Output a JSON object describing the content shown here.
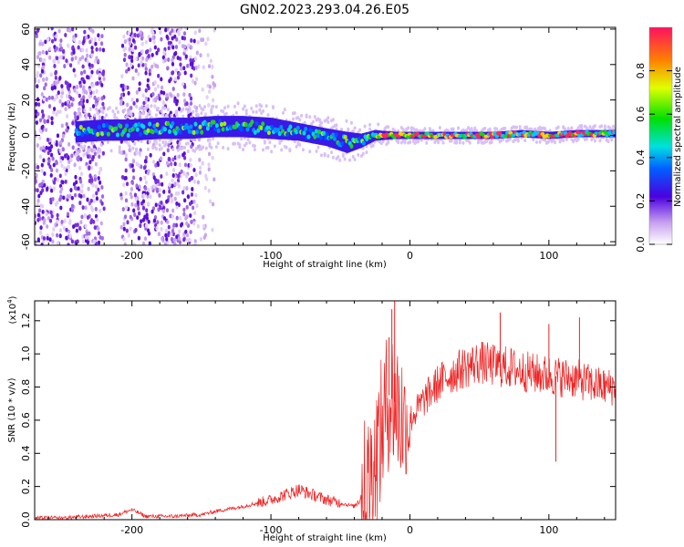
{
  "title": "GN02.2023.293.04.26.E05",
  "chart_data": [
    {
      "type": "heatmap",
      "xlabel": "Height of straight line (km)",
      "ylabel": "Frequency (Hz)",
      "xlim": [
        -270,
        148
      ],
      "ylim": [
        -62,
        61
      ],
      "x_ticks": [
        -200,
        -100,
        0,
        100
      ],
      "y_ticks": [
        -60,
        -40,
        -20,
        0,
        20,
        40,
        60
      ],
      "colorbar": {
        "label": "Normalized spectral amplitude",
        "range": [
          0,
          1
        ],
        "ticks": [
          0.0,
          0.2,
          0.4,
          0.6,
          0.8
        ]
      },
      "ridge": {
        "x": [
          -240,
          -220,
          -200,
          -180,
          -160,
          -140,
          -120,
          -100,
          -80,
          -60,
          -45,
          -35,
          -25,
          -10,
          0,
          20,
          40,
          60,
          80,
          100,
          120,
          148
        ],
        "center_hz": [
          2,
          3,
          3,
          4,
          4,
          5,
          5,
          4,
          2,
          -1,
          -4,
          -3,
          0,
          0,
          0,
          0,
          0,
          0,
          1,
          0,
          1,
          1
        ],
        "half_width_hz": [
          6,
          6,
          6,
          6,
          6,
          6,
          6,
          6,
          5,
          5,
          6,
          4,
          3,
          2,
          2,
          2,
          2,
          2,
          2,
          2,
          2,
          2
        ]
      },
      "scatter_regions": [
        {
          "x_range": [
            -270,
            -220
          ],
          "y_range": [
            -62,
            61
          ],
          "density": "high"
        },
        {
          "x_range": [
            -208,
            -155
          ],
          "y_range": [
            -62,
            61
          ],
          "density": "high"
        },
        {
          "x_range": [
            -155,
            -140
          ],
          "y_range": [
            -62,
            61
          ],
          "density": "low"
        }
      ]
    },
    {
      "type": "line",
      "xlabel": "Height of straight line (km)",
      "ylabel": "SNR (10 * v/v)",
      "y_scale_label": "(x10",
      "y_scale_exponent": "4",
      "xlim": [
        -270,
        148
      ],
      "ylim": [
        0,
        1.32
      ],
      "x_ticks": [
        -200,
        -100,
        0,
        100
      ],
      "y_ticks": [
        0.0,
        0.2,
        0.4,
        0.6,
        0.8,
        1.0,
        1.2
      ],
      "series": [
        {
          "color": "#ee2222",
          "x": [
            -270,
            -250,
            -230,
            -210,
            -200,
            -190,
            -170,
            -150,
            -140,
            -120,
            -100,
            -90,
            -80,
            -70,
            -60,
            -50,
            -40,
            -30,
            -25,
            -20,
            -15,
            -10,
            -5,
            0,
            10,
            20,
            30,
            40,
            50,
            60,
            70,
            80,
            90,
            100,
            110,
            120,
            130,
            140,
            148
          ],
          "y": [
            0.01,
            0.01,
            0.02,
            0.03,
            0.06,
            0.02,
            0.02,
            0.03,
            0.05,
            0.08,
            0.12,
            0.15,
            0.18,
            0.15,
            0.12,
            0.1,
            0.08,
            0.2,
            0.35,
            0.55,
            0.75,
            0.7,
            0.6,
            0.6,
            0.72,
            0.82,
            0.88,
            0.92,
            0.95,
            0.93,
            0.92,
            0.9,
            0.88,
            0.87,
            0.86,
            0.85,
            0.82,
            0.8,
            0.8
          ]
        }
      ],
      "spikes": [
        {
          "x": -13,
          "y": 1.27
        },
        {
          "x": -11,
          "y": 1.32
        },
        {
          "x": -15,
          "y": 1.1
        },
        {
          "x": 65,
          "y": 1.25
        },
        {
          "x": 100,
          "y": 1.18
        },
        {
          "x": 122,
          "y": 1.22
        },
        {
          "x": 105,
          "y": 0.35
        }
      ]
    }
  ]
}
